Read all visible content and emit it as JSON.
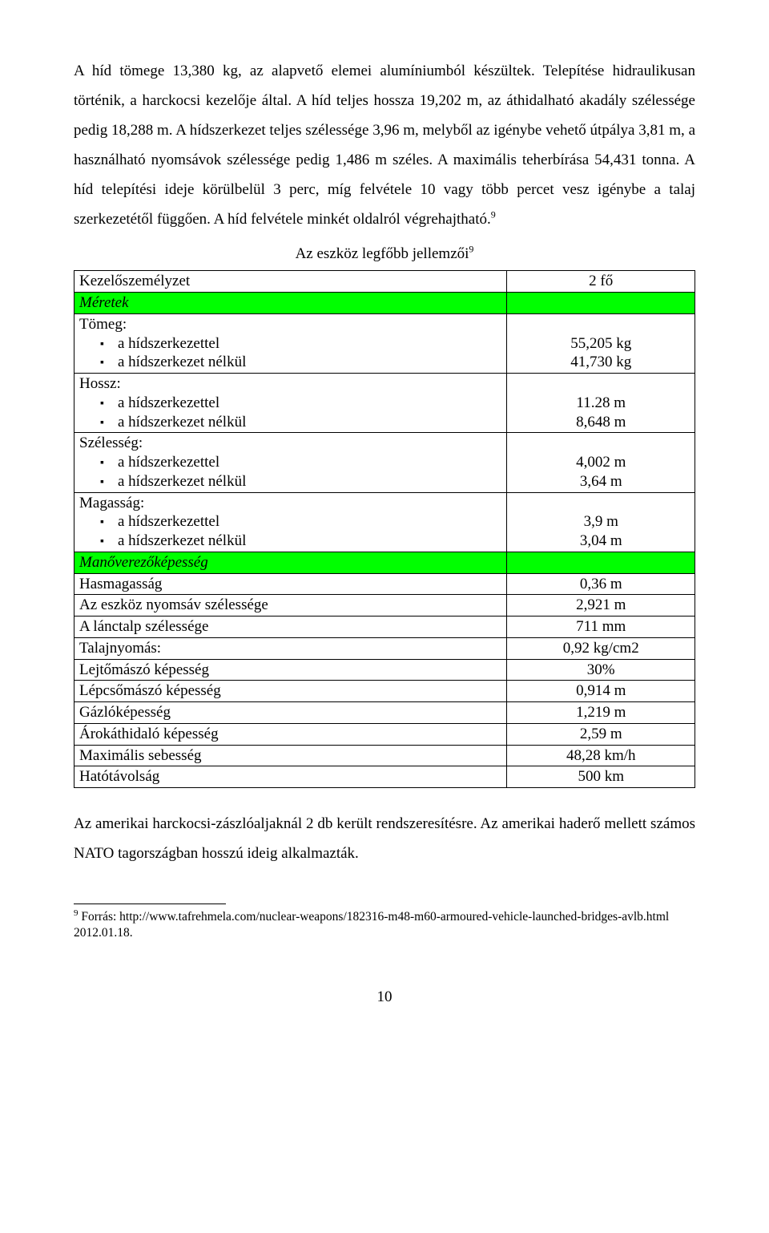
{
  "paragraph1": "A híd tömege 13,380 kg, az alapvető elemei alumíniumból készültek. Telepítése hidraulikusan történik, a harckocsi kezelője által. A híd teljes hossza 19,202 m, az áthidalható akadály szélessége pedig 18,288 m. A hídszerkezet teljes szélessége 3,96 m, melyből az igénybe vehető útpálya 3,81 m, a használható nyomsávok szélessége pedig 1,486 m széles. A maximális teherbírása 54,431 tonna. A híd telepítési ideje körülbelül 3 perc, míg felvétele 10 vagy több percet vesz igénybe a talaj szerkezetétől függően. A híd felvétele minkét oldalról végrehajtható.",
  "paragraph1_supref": "9",
  "table_title": "Az eszköz legfőbb jellemzői",
  "table_title_supref": "9",
  "section_colors": {
    "highlight_bg": "#00ff00",
    "border": "#000000"
  },
  "rows": {
    "crew_label": "Kezelőszemélyzet",
    "crew_val": "2 fő",
    "sec_dim": "Méretek",
    "mass_label": "Tömeg:",
    "with_bridge": "a hídszerkezettel",
    "without_bridge": "a hídszerkezet nélkül",
    "mass_with": "55,205 kg",
    "mass_without": "41,730 kg",
    "length_label": "Hossz:",
    "length_with": "11.28 m",
    "length_without": "8,648 m",
    "width_label": "Szélesség:",
    "width_with": "4,002 m",
    "width_without": "3,64 m",
    "height_label": "Magasság:",
    "height_with": "3,9 m",
    "height_without": "3,04 m",
    "sec_man": "Manőverezőképesség",
    "clearance_label": "Hasmagasság",
    "clearance_val": "0,36 m",
    "trackwidth_label": "Az eszköz nyomsáv szélessége",
    "trackwidth_val": "2,921 m",
    "chainwidth_label": "A lánctalp szélessége",
    "chainwidth_val": "711 mm",
    "groundpress_label": "Talajnyomás:",
    "groundpress_val": "0,92 kg/cm2",
    "slope_label": "Lejtőmászó képesség",
    "slope_val": "30%",
    "step_label": "Lépcsőmászó képesség",
    "step_val": "0,914 m",
    "fording_label": "Gázlóképesség",
    "fording_val": "1,219 m",
    "trench_label": "Árokáthidaló képesség",
    "trench_val": "2,59 m",
    "maxspeed_label": "Maximális sebesség",
    "maxspeed_val": "48,28 km/h",
    "range_label": "Hatótávolság",
    "range_val": "500 km"
  },
  "paragraph2": "Az amerikai harckocsi-zászlóaljaknál 2 db került rendszeresítésre. Az amerikai haderő mellett számos NATO tagországban hosszú ideig alkalmazták.",
  "footnote_ref": "9",
  "footnote_text": " Forrás: http://www.tafrehmela.com/nuclear-weapons/182316-m48-m60-armoured-vehicle-launched-bridges-avlb.html 2012.01.18.",
  "page_number": "10"
}
